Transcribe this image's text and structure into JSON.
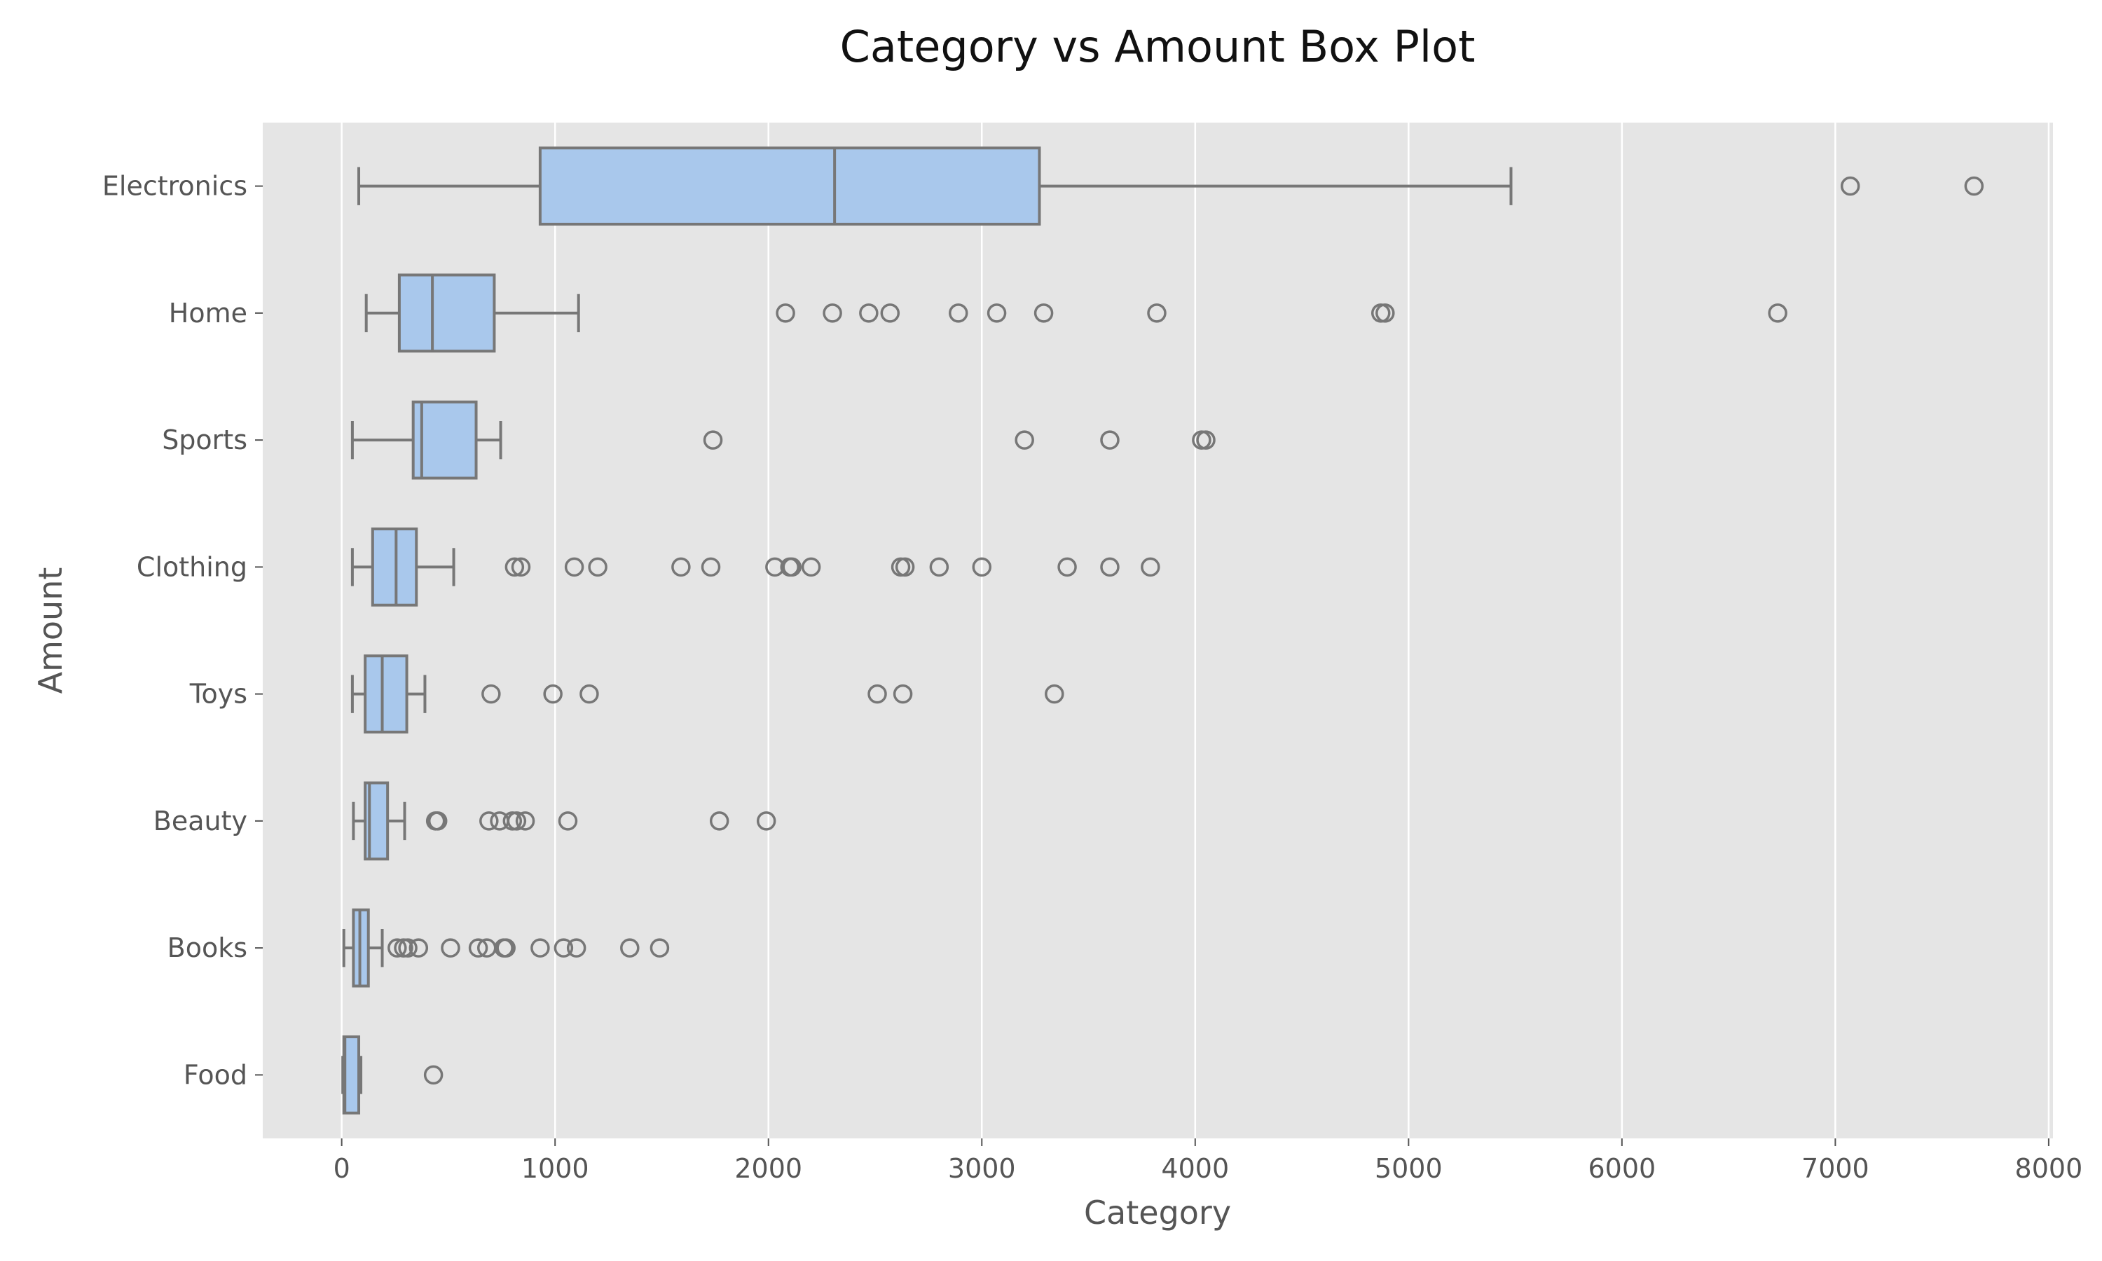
{
  "chart_data": {
    "type": "boxplot",
    "orientation": "horizontal",
    "title": "Category vs Amount Box Plot",
    "xlabel": "Category",
    "ylabel": "Amount",
    "xlim": [
      -370,
      8020
    ],
    "xticks": [
      0,
      1000,
      2000,
      3000,
      4000,
      5000,
      6000,
      7000,
      8000
    ],
    "grid": true,
    "colors": {
      "box_fill": "#a9c8ec",
      "box_stroke": "#777777",
      "plot_bg": "#e5e5e5",
      "grid": "#ffffff"
    },
    "categories": [
      "Electronics",
      "Home",
      "Sports",
      "Clothing",
      "Toys",
      "Beauty",
      "Books",
      "Food"
    ],
    "boxes": [
      {
        "category": "Electronics",
        "whisker_low": 80,
        "q1": 930,
        "median": 2310,
        "q3": 3270,
        "whisker_high": 5480,
        "outliers": [
          7070,
          7650
        ]
      },
      {
        "category": "Home",
        "whisker_low": 115,
        "q1": 270,
        "median": 425,
        "q3": 715,
        "whisker_high": 1110,
        "outliers": [
          2080,
          2300,
          2470,
          2570,
          2890,
          3070,
          3290,
          3820,
          4870,
          4890,
          6730
        ]
      },
      {
        "category": "Sports",
        "whisker_low": 50,
        "q1": 335,
        "median": 375,
        "q3": 630,
        "whisker_high": 745,
        "outliers": [
          1740,
          3200,
          3600,
          4030,
          4050
        ]
      },
      {
        "category": "Clothing",
        "whisker_low": 50,
        "q1": 145,
        "median": 255,
        "q3": 350,
        "whisker_high": 525,
        "outliers": [
          810,
          840,
          1090,
          1200,
          1590,
          1730,
          2030,
          2100,
          2110,
          2200,
          2620,
          2640,
          2800,
          3000,
          3400,
          3600,
          3790
        ]
      },
      {
        "category": "Toys",
        "whisker_low": 50,
        "q1": 110,
        "median": 190,
        "q3": 305,
        "whisker_high": 390,
        "outliers": [
          700,
          990,
          1160,
          2510,
          2630,
          3340
        ]
      },
      {
        "category": "Beauty",
        "whisker_low": 55,
        "q1": 110,
        "median": 130,
        "q3": 215,
        "whisker_high": 295,
        "outliers": [
          440,
          450,
          690,
          740,
          800,
          820,
          860,
          1060,
          1770,
          1990
        ]
      },
      {
        "category": "Books",
        "whisker_low": 10,
        "q1": 55,
        "median": 85,
        "q3": 125,
        "whisker_high": 190,
        "outliers": [
          260,
          290,
          310,
          360,
          510,
          640,
          680,
          760,
          770,
          930,
          1040,
          1100,
          1350,
          1490
        ]
      },
      {
        "category": "Food",
        "whisker_low": 5,
        "q1": 10,
        "median": 15,
        "q3": 80,
        "whisker_high": 90,
        "outliers": [
          430
        ]
      }
    ]
  }
}
